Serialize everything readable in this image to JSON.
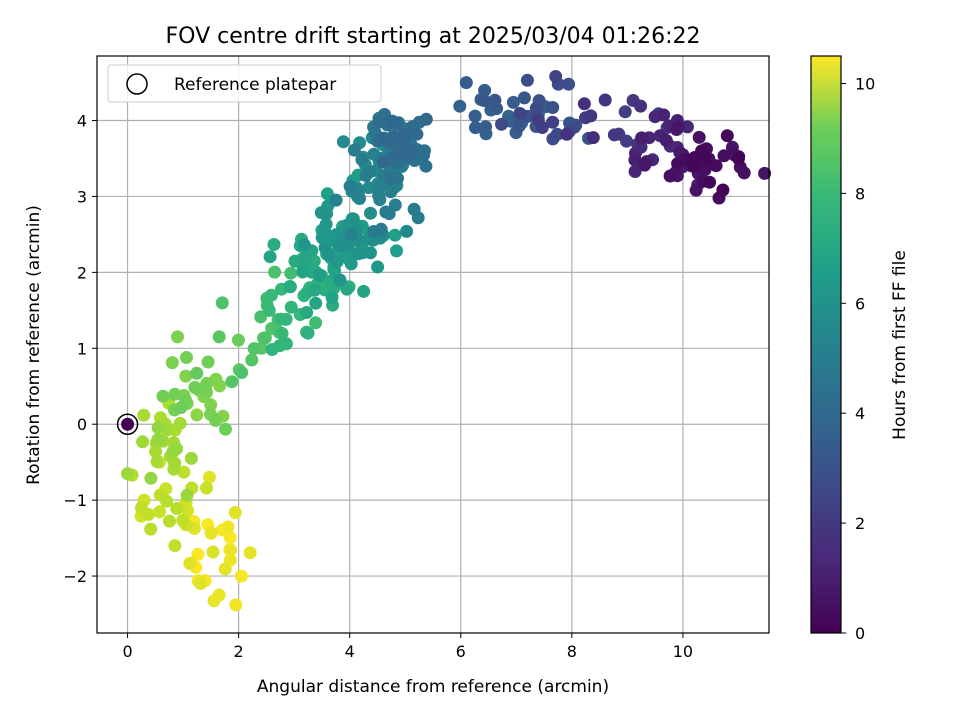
{
  "chart_data": {
    "type": "scatter",
    "title": "FOV centre drift starting at 2025/03/04 01:26:22",
    "xlabel": "Angular distance from reference (arcmin)",
    "ylabel": "Rotation from reference (arcmin)",
    "xlim": [
      -0.55,
      11.55
    ],
    "ylim": [
      -2.75,
      4.85
    ],
    "xticks": [
      0,
      2,
      4,
      6,
      8,
      10
    ],
    "yticks": [
      -2,
      -1,
      0,
      1,
      2,
      3,
      4
    ],
    "grid": true,
    "legend": {
      "position": "top-left",
      "entries": [
        "Reference platepar"
      ]
    },
    "reference_point": {
      "x": 0,
      "y": 0,
      "hours": 0
    },
    "colorbar": {
      "label": "Hours from first FF file",
      "colormap": "viridis",
      "range": [
        0,
        10.5
      ],
      "ticks": [
        0,
        2,
        4,
        6,
        8,
        10
      ]
    },
    "clusters": [
      {
        "x": 10.5,
        "y": 3.45,
        "sx": 0.35,
        "sy": 0.2,
        "n": 30,
        "h0": 0.1,
        "h1": 0.6
      },
      {
        "x": 9.7,
        "y": 3.65,
        "sx": 0.35,
        "sy": 0.25,
        "n": 22,
        "h0": 0.6,
        "h1": 1.3
      },
      {
        "x": 8.7,
        "y": 3.95,
        "sx": 0.6,
        "sy": 0.2,
        "n": 18,
        "h0": 1.3,
        "h1": 2.1
      },
      {
        "x": 7.5,
        "y": 4.0,
        "sx": 0.5,
        "sy": 0.2,
        "n": 18,
        "h0": 2.1,
        "h1": 2.8
      },
      {
        "x": 6.6,
        "y": 4.15,
        "sx": 0.4,
        "sy": 0.2,
        "n": 20,
        "h0": 2.8,
        "h1": 3.4
      },
      {
        "x": 4.95,
        "y": 3.75,
        "sx": 0.3,
        "sy": 0.25,
        "n": 55,
        "h0": 3.4,
        "h1": 4.3
      },
      {
        "x": 4.5,
        "y": 3.2,
        "sx": 0.3,
        "sy": 0.3,
        "n": 55,
        "h0": 4.3,
        "h1": 5.2
      },
      {
        "x": 4.05,
        "y": 2.55,
        "sx": 0.3,
        "sy": 0.28,
        "n": 55,
        "h0": 5.2,
        "h1": 6.0
      },
      {
        "x": 3.5,
        "y": 2.0,
        "sx": 0.3,
        "sy": 0.25,
        "n": 50,
        "h0": 6.0,
        "h1": 6.8
      },
      {
        "x": 2.85,
        "y": 1.45,
        "sx": 0.3,
        "sy": 0.2,
        "n": 22,
        "h0": 6.8,
        "h1": 7.5
      },
      {
        "x": 2.0,
        "y": 0.9,
        "sx": 0.3,
        "sy": 0.2,
        "n": 12,
        "h0": 7.5,
        "h1": 8.1
      },
      {
        "x": 1.2,
        "y": 0.35,
        "sx": 0.35,
        "sy": 0.25,
        "n": 25,
        "h0": 8.1,
        "h1": 8.7
      },
      {
        "x": 0.6,
        "y": -0.3,
        "sx": 0.3,
        "sy": 0.3,
        "n": 25,
        "h0": 8.7,
        "h1": 9.3
      },
      {
        "x": 0.85,
        "y": -1.05,
        "sx": 0.35,
        "sy": 0.2,
        "n": 20,
        "h0": 9.3,
        "h1": 9.9
      },
      {
        "x": 1.6,
        "y": -1.6,
        "sx": 0.3,
        "sy": 0.3,
        "n": 22,
        "h0": 9.9,
        "h1": 10.5
      }
    ],
    "points": [
      {
        "x": 11.0,
        "y": 3.5,
        "h": 0.1
      },
      {
        "x": 10.8,
        "y": 3.8,
        "h": 0.2
      },
      {
        "x": 10.0,
        "y": 3.55,
        "h": 0.8
      },
      {
        "x": 9.9,
        "y": 4.0,
        "h": 1.0
      },
      {
        "x": 9.5,
        "y": 4.05,
        "h": 1.2
      },
      {
        "x": 10.65,
        "y": 2.98,
        "h": 0.3
      },
      {
        "x": 7.2,
        "y": 4.53,
        "h": 2.5
      },
      {
        "x": 6.1,
        "y": 4.5,
        "h": 3.0
      },
      {
        "x": 8.6,
        "y": 4.27,
        "h": 1.6
      },
      {
        "x": 0.9,
        "y": 1.15,
        "h": 8.4
      },
      {
        "x": 1.65,
        "y": 1.15,
        "h": 7.8
      },
      {
        "x": 1.45,
        "y": 0.82,
        "h": 8.2
      },
      {
        "x": 0.25,
        "y": -1.1,
        "h": 9.5
      },
      {
        "x": 1.15,
        "y": -0.45,
        "h": 8.9
      },
      {
        "x": 0.0,
        "y": -0.65,
        "h": 8.9
      },
      {
        "x": 1.65,
        "y": -2.25,
        "h": 10.2
      },
      {
        "x": 1.95,
        "y": -2.38,
        "h": 10.3
      },
      {
        "x": 2.05,
        "y": -2.0,
        "h": 10.4
      },
      {
        "x": 3.25,
        "y": 1.2,
        "h": 6.7
      },
      {
        "x": 4.55,
        "y": 2.45,
        "h": 5.4
      },
      {
        "x": 4.25,
        "y": 1.75,
        "h": 6.1
      },
      {
        "x": 3.95,
        "y": 1.78,
        "h": 6.2
      }
    ]
  }
}
